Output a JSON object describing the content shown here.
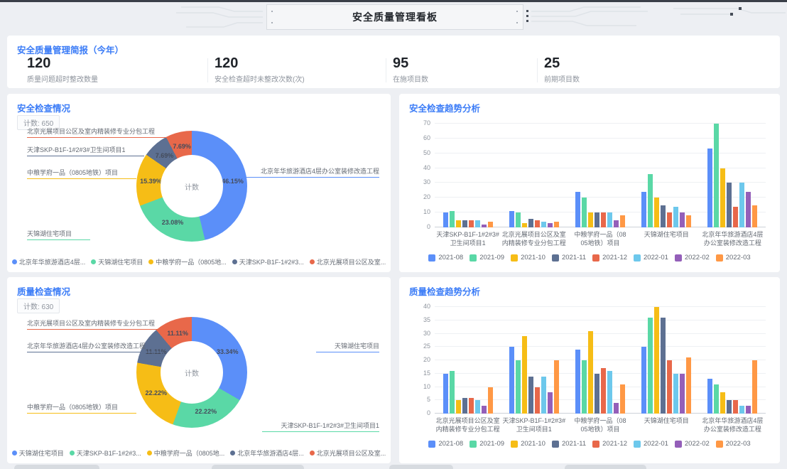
{
  "page": {
    "title": "安全质量管理看板"
  },
  "colors": {
    "accent_blue": "#3b7cf7",
    "page_bg": "#edeff3",
    "panel_bg": "#ffffff",
    "series_blue": "#5B8FF9",
    "series_green": "#5AD8A6",
    "series_yellow": "#F6BD16",
    "series_slate": "#5D7092",
    "series_red": "#E8684A",
    "series_lightblue": "#6DC8EC",
    "series_purple": "#945FB9",
    "series_orange": "#FF9845"
  },
  "summary": {
    "title": "安全质量管理简报（今年）",
    "stats": [
      {
        "value": "120",
        "label": "质量问题超时整改数量"
      },
      {
        "value": "120",
        "label": "安全检查超时未整改次数(次)"
      },
      {
        "value": "95",
        "label": "在施项目数"
      },
      {
        "value": "25",
        "label": "前期项目数"
      }
    ]
  },
  "chart_data": [
    {
      "id": "safety_pie",
      "type": "pie",
      "title": "安全检查情况",
      "badge": "计数: 650",
      "center_label": "计数",
      "slices": [
        {
          "name": "北京年华旅游酒店4层办公室装修改造工程",
          "pct": 46.15,
          "color": "#5B8FF9"
        },
        {
          "name": "天锦湖住宅项目",
          "pct": 23.08,
          "color": "#5AD8A6"
        },
        {
          "name": "中粮学府一品（0805地铁）项目",
          "pct": 15.39,
          "color": "#F6BD16"
        },
        {
          "name": "天津SKP-B1F-1#2#3#卫生间项目1",
          "pct": 7.69,
          "color": "#5D7092"
        },
        {
          "name": "北京光展项目公区及室内精装修专业分包工程",
          "pct": 7.69,
          "color": "#E8684A"
        }
      ],
      "callouts": [
        {
          "label": "北京光展项目公区及室内精装修专业分包工程",
          "color": "#E8684A",
          "side": "left"
        },
        {
          "label": "天津SKP-B1F-1#2#3#卫生间项目1",
          "color": "#5D7092",
          "side": "left"
        },
        {
          "label": "中粮学府一品（0805地铁）项目",
          "color": "#F6BD16",
          "side": "left"
        },
        {
          "label": "天锦湖住宅项目",
          "color": "#5AD8A6",
          "side": "left"
        },
        {
          "label": "北京年华旅游酒店4层办公室装修改造工程",
          "color": "#5B8FF9",
          "side": "right"
        }
      ],
      "legend": [
        "北京年华旅游酒店4层...",
        "天锦湖住宅项目",
        "中粮学府一品（0805地...",
        "天津SKP-B1F-1#2#3...",
        "北京光展项目公区及室..."
      ]
    },
    {
      "id": "safety_trend",
      "type": "bar",
      "title": "安全检查趋势分析",
      "categories": [
        "天津SKP-B1F-1#2#3#\n卫生间项目1",
        "北京光展项目公区及室\n内精装修专业分包工程",
        "中粮学府一品（08\n05地铁）项目",
        "天锦湖住宅项目",
        "北京年华旅游酒店4层\n办公室装修改造工程"
      ],
      "series": [
        {
          "name": "2021-08",
          "color": "#5B8FF9",
          "values": [
            10,
            11,
            24,
            24,
            53
          ]
        },
        {
          "name": "2021-09",
          "color": "#5AD8A6",
          "values": [
            11,
            10,
            20,
            36,
            70
          ]
        },
        {
          "name": "2021-10",
          "color": "#F6BD16",
          "values": [
            5,
            3,
            10,
            20,
            40
          ]
        },
        {
          "name": "2021-11",
          "color": "#5D7092",
          "values": [
            5,
            6,
            10,
            15,
            30
          ]
        },
        {
          "name": "2021-12",
          "color": "#E8684A",
          "values": [
            5,
            5,
            10,
            10,
            14
          ]
        },
        {
          "name": "2022-01",
          "color": "#6DC8EC",
          "values": [
            5,
            4,
            10,
            14,
            30
          ]
        },
        {
          "name": "2022-02",
          "color": "#945FB9",
          "values": [
            2,
            3,
            5,
            10,
            24
          ]
        },
        {
          "name": "2022-03",
          "color": "#FF9845",
          "values": [
            4,
            4,
            8,
            8,
            15
          ]
        }
      ],
      "ylim": [
        0,
        70
      ],
      "yticks": [
        0,
        10,
        20,
        30,
        40,
        50,
        60,
        70
      ],
      "grid": true,
      "legend_position": "bottom"
    },
    {
      "id": "quality_pie",
      "type": "pie",
      "title": "质量检查情况",
      "badge": "计数: 630",
      "center_label": "计数",
      "slices": [
        {
          "name": "天锦湖住宅项目",
          "pct": 33.34,
          "color": "#5B8FF9"
        },
        {
          "name": "天津SKP-B1F-1#2#3#卫生间项目1",
          "pct": 22.22,
          "color": "#5AD8A6"
        },
        {
          "name": "中粮学府一品（0805地铁）项目",
          "pct": 22.22,
          "color": "#F6BD16"
        },
        {
          "name": "北京年华旅游酒店4层办公室装修改造工程",
          "pct": 11.11,
          "color": "#5D7092"
        },
        {
          "name": "北京光展项目公区及室内精装修专业分包工程",
          "pct": 11.11,
          "color": "#E8684A"
        }
      ],
      "callouts": [
        {
          "label": "北京光展项目公区及室内精装修专业分包工程",
          "color": "#E8684A",
          "side": "left"
        },
        {
          "label": "北京年华旅游酒店4层办公室装修改造工程",
          "color": "#5D7092",
          "side": "left"
        },
        {
          "label": "中粮学府一品（0805地铁）项目",
          "color": "#F6BD16",
          "side": "left"
        },
        {
          "label": "天锦湖住宅项目",
          "color": "#5B8FF9",
          "side": "right"
        },
        {
          "label": "天津SKP-B1F-1#2#3#卫生间项目1",
          "color": "#5AD8A6",
          "side": "right"
        }
      ],
      "legend": [
        "天锦湖住宅项目",
        "天津SKP-B1F-1#2#3...",
        "中粮学府一品（0805地...",
        "北京年华旅游酒店4层...",
        "北京光展项目公区及室..."
      ]
    },
    {
      "id": "quality_trend",
      "type": "bar",
      "title": "质量检查趋势分析",
      "categories": [
        "北京光展项目公区及室\n内精装修专业分包工程",
        "天津SKP-B1F-1#2#3#\n卫生间项目1",
        "中粮学府一品（08\n05地铁）项目",
        "天锦湖住宅项目",
        "北京年华旅游酒店4层\n办公室装修改造工程"
      ],
      "series": [
        {
          "name": "2021-08",
          "color": "#5B8FF9",
          "values": [
            15,
            25,
            24,
            25,
            13
          ]
        },
        {
          "name": "2021-09",
          "color": "#5AD8A6",
          "values": [
            16,
            20,
            20,
            36,
            11
          ]
        },
        {
          "name": "2021-10",
          "color": "#F6BD16",
          "values": [
            5,
            29,
            31,
            40,
            8
          ]
        },
        {
          "name": "2021-11",
          "color": "#5D7092",
          "values": [
            6,
            14,
            15,
            36,
            5
          ]
        },
        {
          "name": "2021-12",
          "color": "#E8684A",
          "values": [
            6,
            10,
            17,
            20,
            5
          ]
        },
        {
          "name": "2022-01",
          "color": "#6DC8EC",
          "values": [
            5,
            14,
            16,
            15,
            3
          ]
        },
        {
          "name": "2022-02",
          "color": "#945FB9",
          "values": [
            3,
            8,
            4,
            15,
            3
          ]
        },
        {
          "name": "2022-03",
          "color": "#FF9845",
          "values": [
            10,
            20,
            11,
            21,
            20
          ]
        }
      ],
      "ylim": [
        0,
        40
      ],
      "yticks": [
        0,
        5,
        10,
        15,
        20,
        25,
        30,
        35,
        40
      ],
      "grid": true,
      "legend_position": "bottom"
    }
  ]
}
